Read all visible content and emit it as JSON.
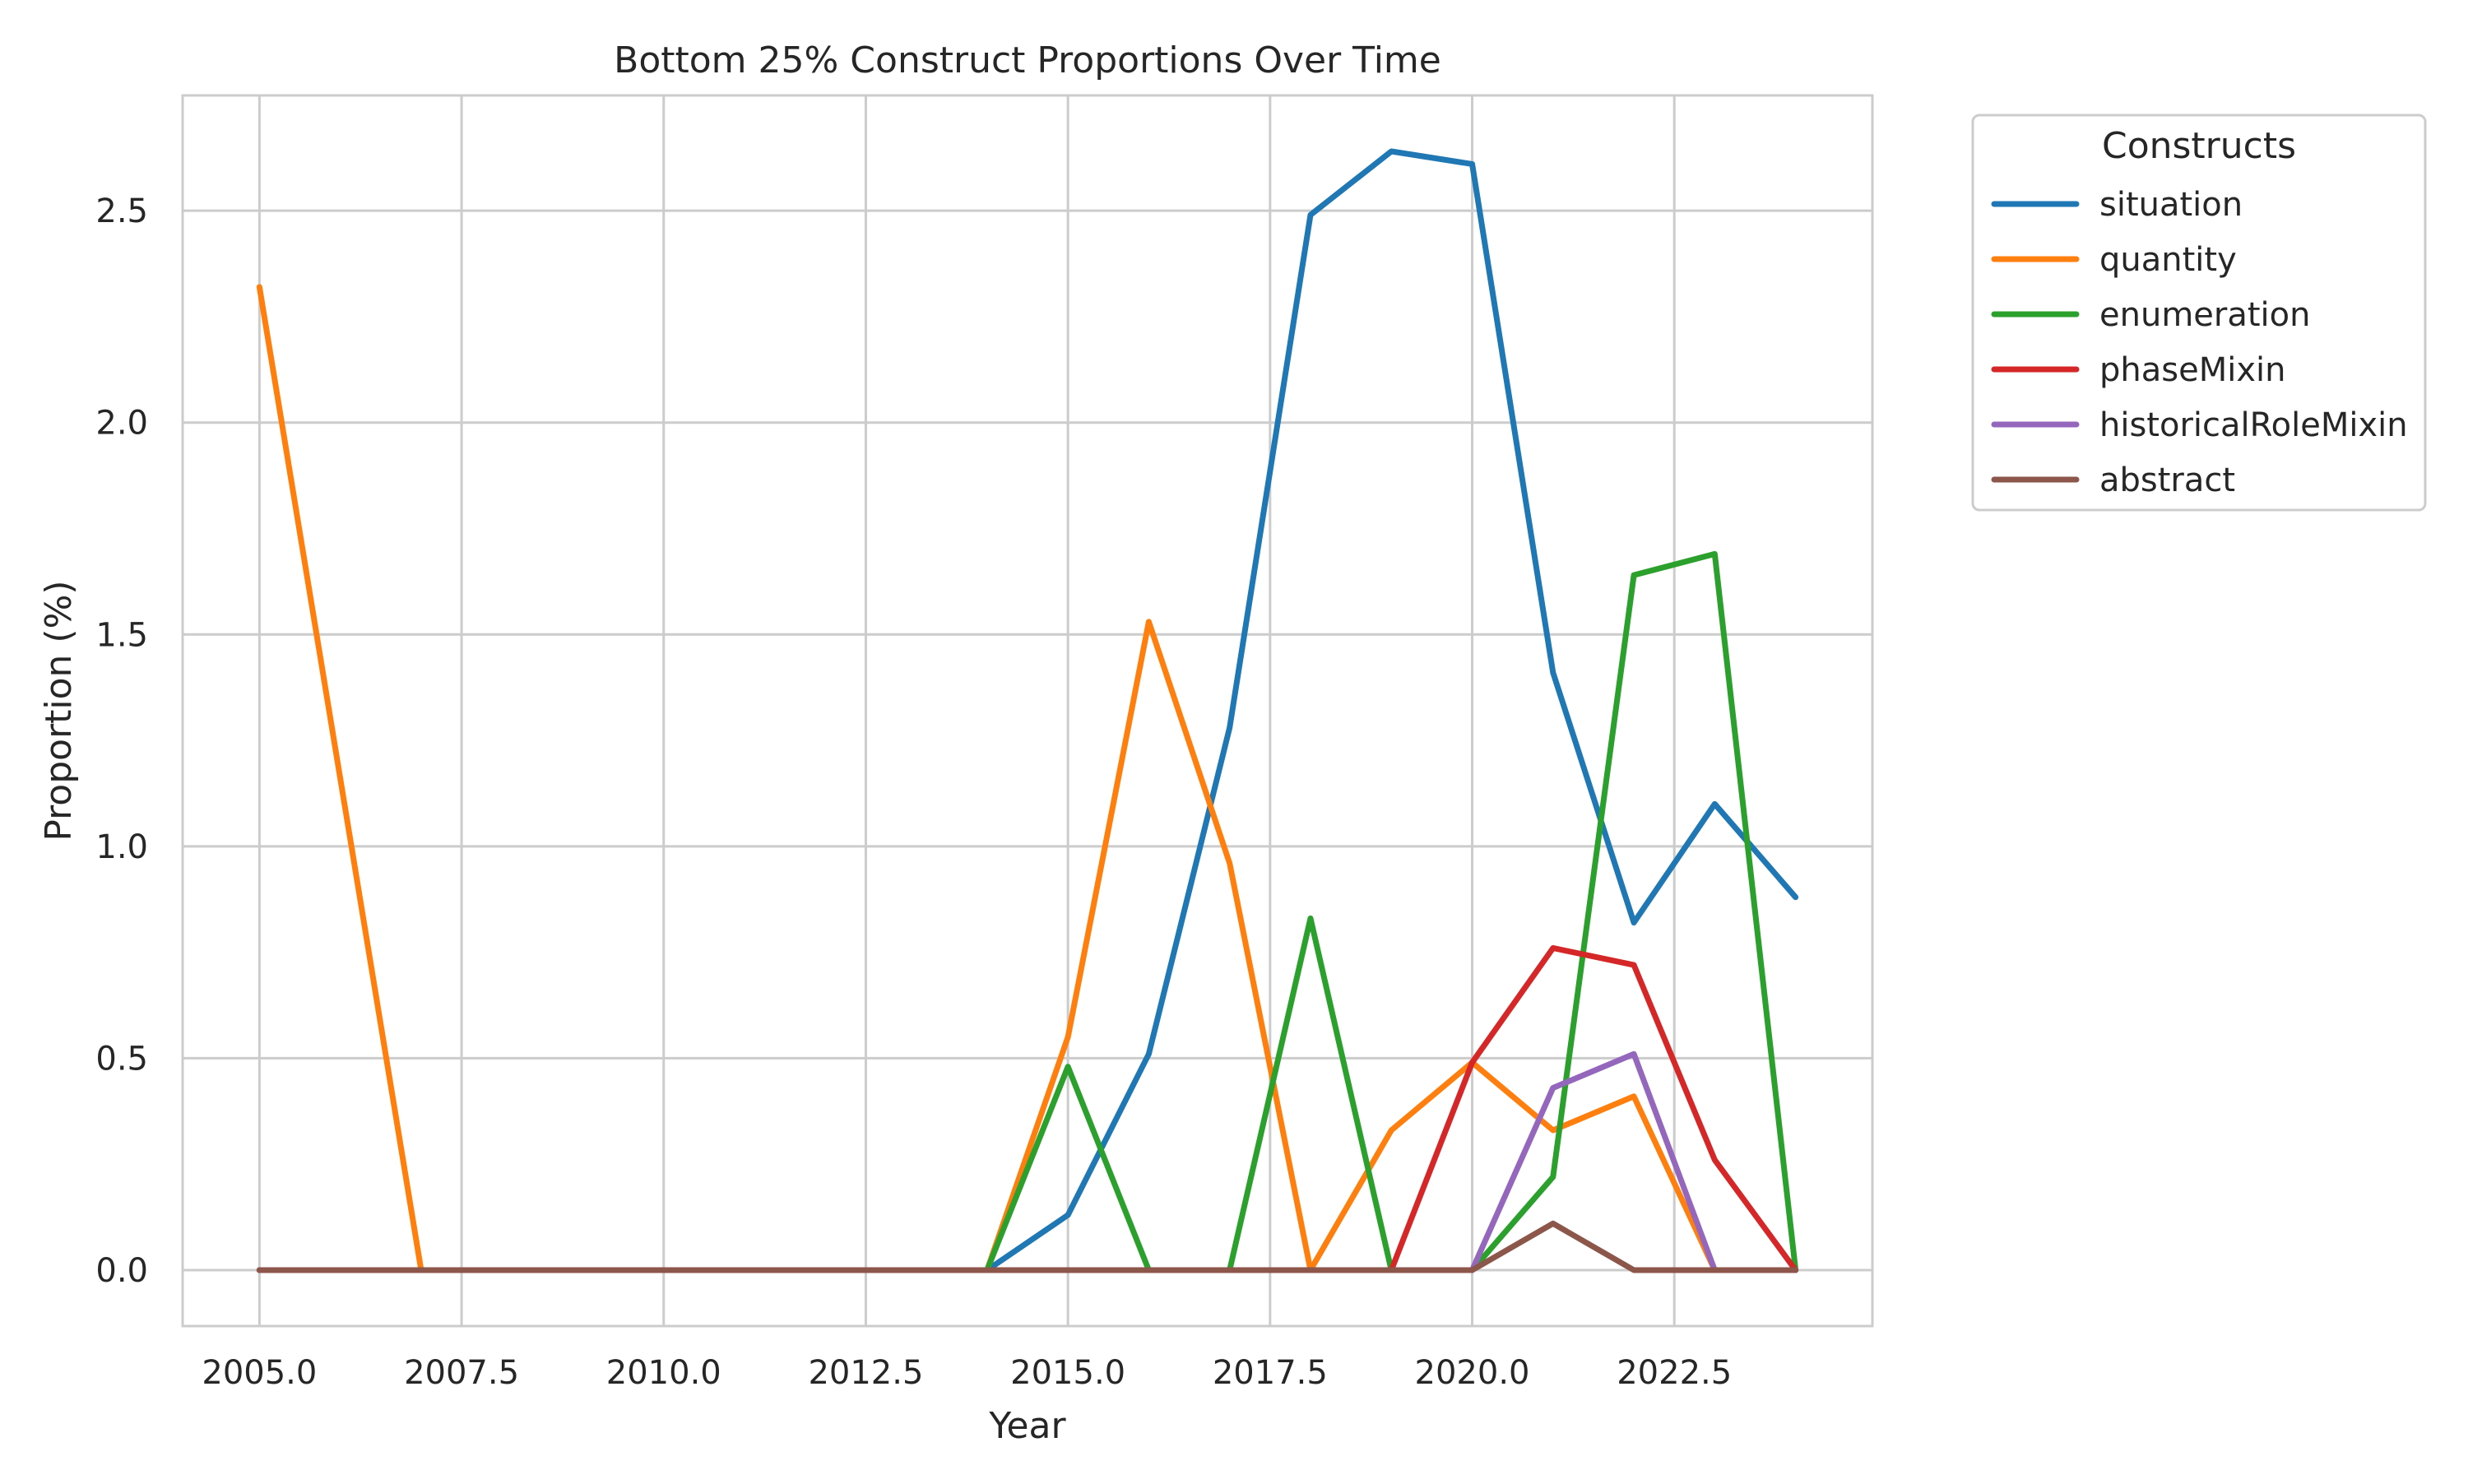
{
  "chart_data": {
    "type": "line",
    "title": "Bottom 25% Construct Proportions Over Time",
    "xlabel": "Year",
    "ylabel": "Proportion (%)",
    "xlim": [
      2004.05,
      2024.95
    ],
    "ylim": [
      -0.132,
      2.772
    ],
    "x_ticks": [
      2005.0,
      2007.5,
      2010.0,
      2012.5,
      2015.0,
      2017.5,
      2020.0,
      2022.5
    ],
    "x_tick_labels": [
      "2005.0",
      "2007.5",
      "2010.0",
      "2012.5",
      "2015.0",
      "2017.5",
      "2020.0",
      "2022.5"
    ],
    "y_ticks": [
      0.0,
      0.5,
      1.0,
      1.5,
      2.0,
      2.5
    ],
    "y_tick_labels": [
      "0.0",
      "0.5",
      "1.0",
      "1.5",
      "2.0",
      "2.5"
    ],
    "grid": true,
    "legend": {
      "title": "Constructs",
      "placement": "outside-top-right"
    },
    "x": [
      2005,
      2006,
      2007,
      2008,
      2009,
      2010,
      2011,
      2012,
      2013,
      2014,
      2015,
      2016,
      2017,
      2018,
      2019,
      2020,
      2021,
      2022,
      2023,
      2024
    ],
    "series": [
      {
        "name": "situation",
        "color": "#1f77b4",
        "values": [
          0,
          0,
          0,
          0,
          0,
          0,
          0,
          0,
          0,
          0,
          0.13,
          0.51,
          1.28,
          2.49,
          2.64,
          2.61,
          1.41,
          0.82,
          1.1,
          0.88
        ]
      },
      {
        "name": "quantity",
        "color": "#ff7f0e",
        "values": [
          2.32,
          null,
          0,
          0,
          0,
          0,
          0,
          0,
          0,
          0,
          0.55,
          1.53,
          0.96,
          0,
          0.33,
          0.49,
          0.33,
          0.41,
          0,
          0
        ]
      },
      {
        "name": "enumeration",
        "color": "#2ca02c",
        "values": [
          0,
          0,
          0,
          0,
          0,
          0,
          0,
          0,
          0,
          0,
          0.48,
          0,
          0,
          0.83,
          0,
          0,
          0.22,
          1.64,
          1.69,
          0
        ]
      },
      {
        "name": "phaseMixin",
        "color": "#d62728",
        "values": [
          0,
          0,
          0,
          0,
          0,
          0,
          0,
          0,
          0,
          0,
          0,
          0,
          0,
          0,
          0,
          0.49,
          0.76,
          0.72,
          0.26,
          0
        ]
      },
      {
        "name": "historicalRoleMixin",
        "color": "#9467bd",
        "values": [
          0,
          0,
          0,
          0,
          0,
          0,
          0,
          0,
          0,
          0,
          0,
          0,
          0,
          0,
          0,
          0,
          0.43,
          0.51,
          0,
          0
        ]
      },
      {
        "name": "abstract",
        "color": "#8c564b",
        "values": [
          0,
          0,
          0,
          0,
          0,
          0,
          0,
          0,
          0,
          0,
          0,
          0,
          0,
          0,
          0,
          0,
          0.11,
          0,
          0,
          0
        ]
      }
    ]
  }
}
